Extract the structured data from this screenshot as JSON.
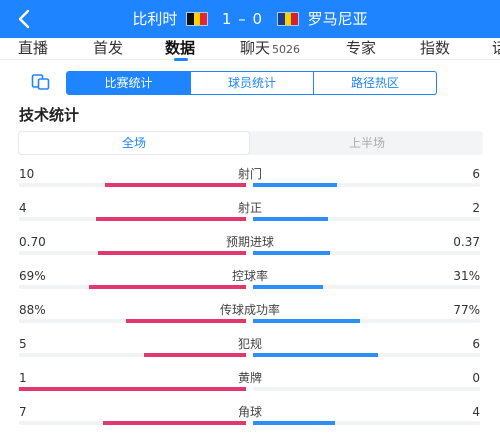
{
  "header": {
    "home_team": "比利时",
    "away_team": "罗马尼亚",
    "home_score": "1",
    "away_score": "0",
    "separator": "–",
    "home_flag_colors": [
      "#111111",
      "#f5d400",
      "#e3262f"
    ],
    "away_flag_colors": [
      "#1d3c8f",
      "#f5d400",
      "#d3202a"
    ],
    "bg_color": "#1f84ff"
  },
  "tabs": [
    {
      "label": "直播",
      "badge": ""
    },
    {
      "label": "首发",
      "badge": ""
    },
    {
      "label": "数据",
      "badge": "",
      "active": true
    },
    {
      "label": "聊天",
      "badge": "5026"
    },
    {
      "label": "专家",
      "badge": ""
    },
    {
      "label": "指数",
      "badge": ""
    },
    {
      "label": "话",
      "badge": ""
    }
  ],
  "segments": [
    "比赛统计",
    "球员统计",
    "路径热区"
  ],
  "section_title": "技术统计",
  "period_tabs": [
    "全场",
    "上半场"
  ],
  "colors": {
    "home": "#e0386f",
    "away": "#2c8ef8",
    "accent": "#1f84ff"
  },
  "stats": [
    {
      "name": "射门",
      "home": "10",
      "away": "6",
      "home_fill": 0.62,
      "away_fill": 0.37
    },
    {
      "name": "射正",
      "home": "4",
      "away": "2",
      "home_fill": 0.66,
      "away_fill": 0.33
    },
    {
      "name": "预期进球",
      "home": "0.70",
      "away": "0.37",
      "home_fill": 0.65,
      "away_fill": 0.34
    },
    {
      "name": "控球率",
      "home": "69%",
      "away": "31%",
      "home_fill": 0.69,
      "away_fill": 0.31
    },
    {
      "name": "传球成功率",
      "home": "88%",
      "away": "77%",
      "home_fill": 0.53,
      "away_fill": 0.47
    },
    {
      "name": "犯规",
      "home": "5",
      "away": "6",
      "home_fill": 0.45,
      "away_fill": 0.55
    },
    {
      "name": "黄牌",
      "home": "1",
      "away": "0",
      "home_fill": 1.0,
      "away_fill": 0.0
    },
    {
      "name": "角球",
      "home": "7",
      "away": "4",
      "home_fill": 0.63,
      "away_fill": 0.36
    }
  ]
}
